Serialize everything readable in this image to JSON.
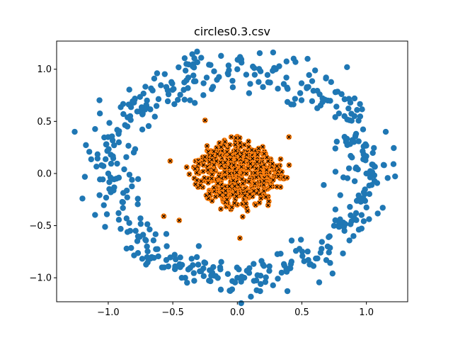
{
  "chart_data": {
    "type": "scatter",
    "title": "circles0.3.csv",
    "xlabel": "",
    "ylabel": "",
    "xlim": [
      -1.4,
      1.32
    ],
    "ylim": [
      -1.23,
      1.27
    ],
    "x_ticks": [
      -1.0,
      -0.5,
      0.0,
      0.5,
      1.0
    ],
    "x_tick_labels": [
      "−1.0",
      "−0.5",
      "0.0",
      "0.5",
      "1.0"
    ],
    "y_ticks": [
      -1.0,
      -0.5,
      0.0,
      0.5,
      1.0
    ],
    "y_tick_labels": [
      "−1.0",
      "−0.5",
      "0.0",
      "0.5",
      "1.0"
    ],
    "grid": false,
    "legend": "none",
    "series": [
      {
        "color": "#1f77b4",
        "marker": "circle",
        "shape": "ring",
        "approx_center": [
          0.0,
          0.0
        ],
        "approx_radius": 1.0,
        "noise": 0.1,
        "point_count": 500,
        "points": [
          [
            1.0,
            0.0
          ],
          [
            0.98,
            0.18
          ],
          [
            0.92,
            0.38
          ],
          [
            0.83,
            0.55
          ],
          [
            0.7,
            0.7
          ],
          [
            0.55,
            0.83
          ],
          [
            0.38,
            0.92
          ],
          [
            0.18,
            0.98
          ],
          [
            0.0,
            1.0
          ],
          [
            -0.18,
            0.98
          ],
          [
            -0.38,
            0.92
          ],
          [
            -0.55,
            0.83
          ],
          [
            -0.7,
            0.7
          ],
          [
            -0.83,
            0.55
          ],
          [
            -0.92,
            0.38
          ],
          [
            -0.98,
            0.18
          ],
          [
            -1.0,
            0.0
          ],
          [
            -0.98,
            -0.18
          ],
          [
            -0.92,
            -0.38
          ],
          [
            -0.83,
            -0.55
          ],
          [
            -0.7,
            -0.7
          ],
          [
            -0.55,
            -0.83
          ],
          [
            -0.38,
            -0.92
          ],
          [
            -0.18,
            -0.98
          ],
          [
            0.0,
            -1.0
          ],
          [
            0.18,
            -0.98
          ],
          [
            0.38,
            -0.92
          ],
          [
            0.55,
            -0.83
          ],
          [
            0.7,
            -0.7
          ],
          [
            0.83,
            -0.55
          ],
          [
            0.92,
            -0.38
          ],
          [
            0.98,
            -0.18
          ],
          [
            -1.26,
            0.4
          ],
          [
            1.21,
            0.09
          ],
          [
            -1.2,
            -0.24
          ],
          [
            1.15,
            0.4
          ],
          [
            0.85,
            1.02
          ],
          [
            0.9,
            -0.6
          ],
          [
            -0.55,
            -0.58
          ],
          [
            0.76,
            0.78
          ]
        ]
      },
      {
        "color": "#ff7f0e",
        "marker": "x",
        "shape": "disk",
        "approx_center": [
          0.0,
          0.0
        ],
        "approx_radius": 0.3,
        "noise": 0.1,
        "point_count": 500,
        "points": [
          [
            0.0,
            0.0
          ],
          [
            0.3,
            0.0
          ],
          [
            0.21,
            0.21
          ],
          [
            0.0,
            0.3
          ],
          [
            -0.21,
            0.21
          ],
          [
            -0.3,
            0.0
          ],
          [
            -0.21,
            -0.21
          ],
          [
            0.0,
            -0.3
          ],
          [
            0.21,
            -0.21
          ],
          [
            -0.25,
            0.51
          ],
          [
            0.4,
            0.35
          ],
          [
            0.02,
            -0.62
          ],
          [
            -0.45,
            -0.45
          ],
          [
            -0.52,
            0.12
          ],
          [
            -0.57,
            -0.41
          ],
          [
            0.36,
            -0.05
          ]
        ]
      }
    ]
  }
}
